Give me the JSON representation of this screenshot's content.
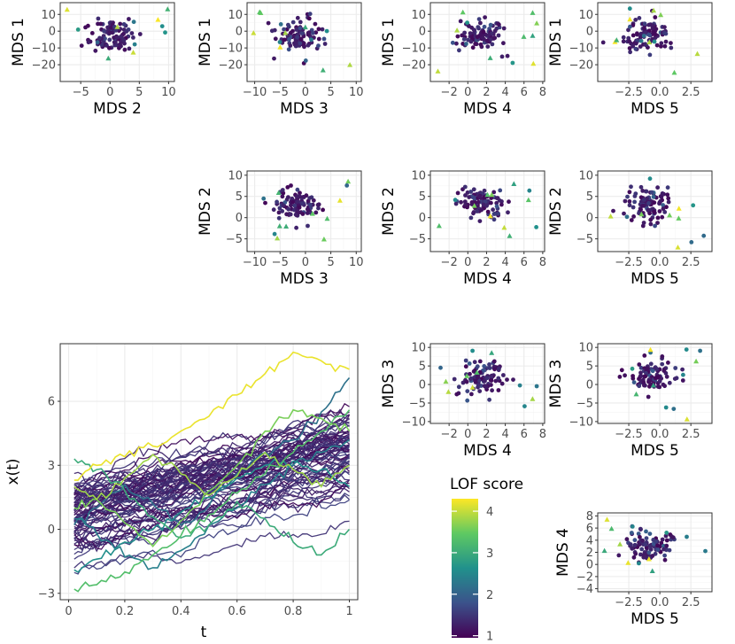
{
  "colors": {
    "viridis": [
      "#440154",
      "#3b528b",
      "#21918c",
      "#5ec962",
      "#fde725"
    ],
    "panel_border": "#333333",
    "grid_major": "#ebebeb",
    "grid_minor": "#f5f5f5",
    "axis_text": "#4d4d4d",
    "title_text": "#000000"
  },
  "legend": {
    "title": "LOF score",
    "range": [
      0.95,
      4.3
    ],
    "ticks": [
      1,
      2,
      3,
      4
    ]
  },
  "chart_data": [
    {
      "type": "scatter",
      "id": "mds1-vs-mds2",
      "x_var": "MDS 2",
      "y_var": "MDS 1",
      "xlabel": "MDS  2",
      "ylabel": "MDS  1",
      "xlim": [
        -8.5,
        11
      ],
      "ylim": [
        -30,
        17
      ],
      "xticks": [
        -5,
        0,
        5,
        10
      ],
      "yticks": [
        -20,
        -10,
        0,
        10
      ]
    },
    {
      "type": "scatter",
      "id": "mds1-vs-mds3",
      "x_var": "MDS 3",
      "y_var": "MDS 1",
      "xlabel": "MDS  3",
      "ylabel": "MDS  1",
      "xlim": [
        -11.5,
        11
      ],
      "ylim": [
        -30,
        17
      ],
      "xticks": [
        -10,
        -5,
        0,
        5,
        10
      ],
      "yticks": [
        -20,
        -10,
        0,
        10
      ]
    },
    {
      "type": "scatter",
      "id": "mds1-vs-mds4",
      "x_var": "MDS 4",
      "y_var": "MDS 1",
      "xlabel": "MDS  4",
      "ylabel": "MDS  1",
      "xlim": [
        -4,
        8.2
      ],
      "ylim": [
        -30,
        17
      ],
      "xticks": [
        -2,
        0,
        2,
        4,
        6,
        8
      ],
      "yticks": [
        -20,
        -10,
        0,
        10
      ]
    },
    {
      "type": "scatter",
      "id": "mds1-vs-mds5",
      "x_var": "MDS 5",
      "y_var": "MDS 1",
      "xlabel": "MDS  5",
      "ylabel": "MDS  1",
      "xlim": [
        -5,
        4.2
      ],
      "ylim": [
        -30,
        17
      ],
      "xticks": [
        -2.5,
        0,
        2.5
      ],
      "xtick_labels": [
        "−2.5",
        "0.0",
        "2.5"
      ],
      "yticks": [
        -20,
        -10,
        0,
        10
      ]
    },
    {
      "type": "scatter",
      "id": "mds2-vs-mds3",
      "x_var": "MDS 3",
      "y_var": "MDS 2",
      "xlabel": "MDS  3",
      "ylabel": "MDS  2",
      "xlim": [
        -11.5,
        11
      ],
      "ylim": [
        -8,
        11
      ],
      "xticks": [
        -10,
        -5,
        0,
        5,
        10
      ],
      "yticks": [
        -5,
        0,
        5,
        10
      ]
    },
    {
      "type": "scatter",
      "id": "mds2-vs-mds4",
      "x_var": "MDS 4",
      "y_var": "MDS 2",
      "xlabel": "MDS  4",
      "ylabel": "MDS  2",
      "xlim": [
        -4,
        8.2
      ],
      "ylim": [
        -8,
        11
      ],
      "xticks": [
        -2,
        0,
        2,
        4,
        6,
        8
      ],
      "yticks": [
        -5,
        0,
        5,
        10
      ]
    },
    {
      "type": "scatter",
      "id": "mds2-vs-mds5",
      "x_var": "MDS 5",
      "y_var": "MDS 2",
      "xlabel": "MDS  5",
      "ylabel": "MDS  2",
      "xlim": [
        -5,
        4.2
      ],
      "ylim": [
        -8,
        11
      ],
      "xticks": [
        -2.5,
        0,
        2.5
      ],
      "xtick_labels": [
        "−2.5",
        "0.0",
        "2.5"
      ],
      "yticks": [
        -5,
        0,
        5,
        10
      ]
    },
    {
      "type": "scatter",
      "id": "mds3-vs-mds4",
      "x_var": "MDS 4",
      "y_var": "MDS 3",
      "xlabel": "MDS  4",
      "ylabel": "MDS  3",
      "xlim": [
        -4,
        8.2
      ],
      "ylim": [
        -10.5,
        11
      ],
      "xticks": [
        -2,
        0,
        2,
        4,
        6,
        8
      ],
      "yticks": [
        -10,
        -5,
        0,
        5,
        10
      ]
    },
    {
      "type": "scatter",
      "id": "mds3-vs-mds5",
      "x_var": "MDS 5",
      "y_var": "MDS 3",
      "xlabel": "MDS  5",
      "ylabel": "MDS  3",
      "xlim": [
        -5,
        4.2
      ],
      "ylim": [
        -10.5,
        11
      ],
      "xticks": [
        -2.5,
        0,
        2.5
      ],
      "xtick_labels": [
        "−2.5",
        "0.0",
        "2.5"
      ],
      "yticks": [
        -10,
        -5,
        0,
        5,
        10
      ]
    },
    {
      "type": "scatter",
      "id": "mds4-vs-mds5",
      "x_var": "MDS 5",
      "y_var": "MDS 4",
      "xlabel": "MDS  5",
      "ylabel": "MDS  4",
      "xlim": [
        -5,
        4.2
      ],
      "ylim": [
        -4.5,
        8.5
      ],
      "xticks": [
        -2.5,
        0,
        2.5
      ],
      "xtick_labels": [
        "−2.5",
        "0.0",
        "2.5"
      ],
      "yticks": [
        -4,
        -2,
        0,
        2,
        4,
        6,
        8
      ]
    },
    {
      "type": "line",
      "id": "functional-curves",
      "xlabel": "t",
      "ylabel": "x(t)",
      "xlim": [
        -0.03,
        1.03
      ],
      "ylim": [
        -3.3,
        8.7
      ],
      "xticks": [
        0,
        0.2,
        0.4,
        0.6,
        0.8,
        1
      ],
      "xtick_labels": [
        "0",
        "0.2",
        "0.4",
        "0.6",
        "0.8",
        "1"
      ],
      "yticks": [
        -3,
        0,
        3,
        6
      ],
      "yticks_labels": [
        "−3",
        "0",
        "3",
        "6"
      ],
      "t_grid": [
        0.02,
        0.1,
        0.2,
        0.3,
        0.4,
        0.5,
        0.6,
        0.7,
        0.8,
        0.9,
        1.0
      ],
      "outliers": [
        {
          "score": 4.2,
          "y": [
            2.3,
            3.0,
            3.4,
            3.9,
            4.6,
            5.3,
            6.3,
            7.3,
            8.3,
            7.9,
            7.5
          ]
        },
        {
          "score": 3.3,
          "y": [
            -2.8,
            -2.6,
            -2.0,
            -1.2,
            -0.3,
            0.7,
            1.7,
            2.6,
            3.6,
            4.6,
            5.6
          ]
        },
        {
          "score": 3.0,
          "y": [
            3.3,
            2.8,
            1.8,
            0.6,
            -0.4,
            0.2,
            1.3,
            0.5,
            -0.6,
            -1.2,
            0.0
          ]
        },
        {
          "score": 2.6,
          "y": [
            -1.9,
            -1.4,
            -0.6,
            0.0,
            0.8,
            1.5,
            2.4,
            3.0,
            3.2,
            2.8,
            2.0
          ]
        },
        {
          "score": 3.6,
          "y": [
            1.0,
            1.4,
            0.3,
            -0.8,
            0.4,
            1.8,
            3.0,
            4.6,
            5.6,
            5.2,
            4.6
          ]
        },
        {
          "score": 2.4,
          "y": [
            0.5,
            -0.2,
            -1.3,
            -1.8,
            -1.0,
            0.2,
            1.0,
            2.1,
            3.0,
            3.6,
            4.2
          ]
        },
        {
          "score": 3.8,
          "y": [
            2.0,
            1.4,
            2.4,
            3.5,
            2.6,
            1.6,
            2.5,
            3.6,
            2.8,
            2.0,
            3.0
          ]
        },
        {
          "score": 2.2,
          "y": [
            0.2,
            1.0,
            2.1,
            1.2,
            0.2,
            1.1,
            2.6,
            3.6,
            4.2,
            5.5,
            7.1
          ]
        }
      ],
      "n_regular_curves": 70,
      "regular_score_range": [
        1.0,
        1.6
      ],
      "regular_center": [
        0.7,
        1.0,
        1.3,
        1.6,
        1.9,
        2.2,
        2.5,
        2.8,
        3.1,
        3.4,
        3.7
      ],
      "regular_spread": 1.0
    }
  ]
}
